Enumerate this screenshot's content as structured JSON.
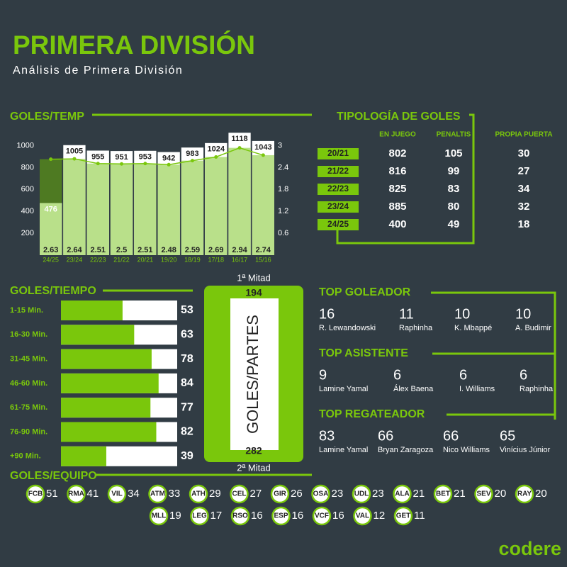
{
  "header": {
    "title": "PRIMERA DIVISIÓN",
    "subtitle": "Análisis de Primera División"
  },
  "chart_data": [
    {
      "type": "bar",
      "title": "GOLES/TEMP",
      "categories": [
        "24/25",
        "23/24",
        "22/23",
        "21/22",
        "20/21",
        "19/20",
        "18/19",
        "17/18",
        "16/17",
        "15/16"
      ],
      "series": [
        {
          "type": "bar",
          "color": "#ffffff",
          "values": [
            476,
            1005,
            955,
            951,
            953,
            942,
            983,
            1024,
            1118,
            1043
          ]
        },
        {
          "type": "line",
          "axis": "y2",
          "color": "#7ac70c",
          "area_color": "#b9e08a",
          "under_color": "#4e7a22",
          "values": [
            2.63,
            2.64,
            2.51,
            2.5,
            2.51,
            2.48,
            2.59,
            2.69,
            2.94,
            2.74
          ]
        }
      ],
      "ylim": [
        0,
        1120
      ],
      "yticks": [
        200,
        400,
        600,
        800,
        1000
      ],
      "y2lim": [
        0,
        3.36
      ],
      "y2ticks": [
        0.6,
        1.2,
        1.8,
        2.4,
        3
      ],
      "grid": false
    },
    {
      "type": "bar",
      "orientation": "horizontal",
      "title": "GOLES/TIEMPO",
      "categories": [
        "1-15 Min.",
        "16-30 Min.",
        "31-45 Min.",
        "46-60 Min.",
        "61-75 Min.",
        "76-90 Min.",
        "+90 Min."
      ],
      "values": [
        53,
        63,
        78,
        84,
        77,
        82,
        39
      ],
      "color": "#7ac70c",
      "xlim": [
        0,
        100
      ]
    }
  ],
  "partes": {
    "title": "GOLES/PARTES",
    "first": {
      "label": "1ª Mitad",
      "value": 194
    },
    "second": {
      "label": "2ª Mitad",
      "value": 282
    }
  },
  "tipologia": {
    "title": "TIPOLOGÍA DE GOLES",
    "columns": [
      "EN JUEGO",
      "PENALTIS",
      "PROPIA PUERTA"
    ],
    "rows": [
      [
        "20/21",
        802,
        105,
        30
      ],
      [
        "21/22",
        816,
        99,
        27
      ],
      [
        "22/23",
        825,
        83,
        34
      ],
      [
        "23/24",
        885,
        80,
        32
      ],
      [
        "24/25",
        400,
        49,
        18
      ]
    ]
  },
  "tops": [
    {
      "title": "TOP GOLEADOR",
      "entries": [
        {
          "value": 16,
          "name": "R. Lewandowski"
        },
        {
          "value": 11,
          "name": "Raphinha"
        },
        {
          "value": 10,
          "name": "K. Mbappé"
        },
        {
          "value": 10,
          "name": "A. Budimir"
        }
      ]
    },
    {
      "title": "TOP ASISTENTE",
      "entries": [
        {
          "value": 9,
          "name": "Lamine Yamal"
        },
        {
          "value": 6,
          "name": "Álex Baena"
        },
        {
          "value": 6,
          "name": "I. Williams"
        },
        {
          "value": 6,
          "name": "Raphinha"
        }
      ]
    },
    {
      "title": "TOP REGATEADOR",
      "entries": [
        {
          "value": 83,
          "name": "Lamine Yamal"
        },
        {
          "value": 66,
          "name": "Bryan Zaragoza"
        },
        {
          "value": 66,
          "name": "Nico Williams"
        },
        {
          "value": 65,
          "name": "Vinícius Júnior"
        }
      ]
    }
  ],
  "goles_equipo": {
    "title": "GOLES/EQUIPO",
    "teams": [
      {
        "abbr": "FCB",
        "goals": 51
      },
      {
        "abbr": "RMA",
        "goals": 41
      },
      {
        "abbr": "VIL",
        "goals": 34
      },
      {
        "abbr": "ATM",
        "goals": 33
      },
      {
        "abbr": "ATH",
        "goals": 29
      },
      {
        "abbr": "CEL",
        "goals": 27
      },
      {
        "abbr": "GIR",
        "goals": 26
      },
      {
        "abbr": "OSA",
        "goals": 23
      },
      {
        "abbr": "UDL",
        "goals": 23
      },
      {
        "abbr": "ALA",
        "goals": 21
      },
      {
        "abbr": "BET",
        "goals": 21
      },
      {
        "abbr": "SEV",
        "goals": 20
      },
      {
        "abbr": "RAY",
        "goals": 20
      },
      {
        "abbr": "MLL",
        "goals": 19
      },
      {
        "abbr": "LEG",
        "goals": 17
      },
      {
        "abbr": "RSO",
        "goals": 16
      },
      {
        "abbr": "ESP",
        "goals": 16
      },
      {
        "abbr": "VCF",
        "goals": 16
      },
      {
        "abbr": "VAL",
        "goals": 12
      },
      {
        "abbr": "GET",
        "goals": 11
      }
    ]
  },
  "logo": "codere"
}
